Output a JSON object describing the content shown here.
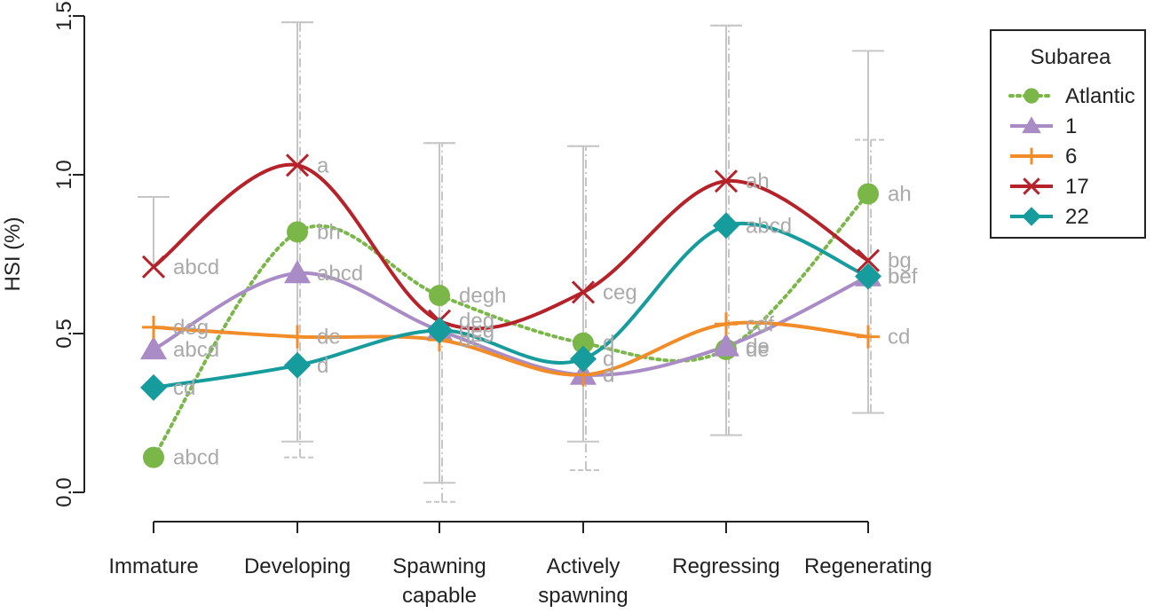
{
  "chart_data": {
    "type": "line",
    "ylabel": "HSI (%)",
    "ylim": [
      0,
      1.5
    ],
    "yticks": [
      "0.0",
      "0.5",
      "1.0",
      "1.5"
    ],
    "categories": [
      "Immature",
      "Developing",
      "Spawning capable",
      "Actively spawning",
      "Regressing",
      "Regenerating"
    ],
    "category_lines": [
      [
        "Immature"
      ],
      [
        "Developing"
      ],
      [
        "Spawning",
        "capable"
      ],
      [
        "Actively",
        "spawning"
      ],
      [
        "Regressing"
      ],
      [
        "Regenerating"
      ]
    ],
    "legend": {
      "title": "Subarea",
      "position": "top-right"
    },
    "series": [
      {
        "name": "Atlantic",
        "color": "#7ab648",
        "marker": "circle",
        "style": "dotted",
        "values": [
          0.11,
          0.82,
          0.62,
          0.47,
          0.45,
          0.94
        ],
        "err_low": [
          null,
          0.11,
          -0.03,
          0.07,
          0.18,
          0.25
        ],
        "err_high": [
          null,
          1.48,
          1.1,
          1.09,
          1.47,
          1.11
        ],
        "labels": [
          "abcd",
          "bh",
          "degh",
          "d",
          "de",
          "ah"
        ]
      },
      {
        "name": "1",
        "color": "#a98bc6",
        "marker": "triangle",
        "style": "solid",
        "values": [
          0.45,
          0.69,
          0.51,
          0.37,
          0.46,
          0.68
        ],
        "err_low": [
          null,
          null,
          null,
          null,
          null,
          null
        ],
        "err_high": [
          null,
          null,
          null,
          null,
          null,
          null
        ],
        "labels": [
          "abcd",
          "abcd",
          "deg",
          "d",
          "de",
          "be"
        ]
      },
      {
        "name": "6",
        "color": "#f28c28",
        "marker": "plus",
        "style": "solid",
        "values": [
          0.52,
          0.49,
          0.48,
          0.37,
          0.53,
          0.49
        ],
        "err_low": [
          null,
          null,
          null,
          null,
          null,
          null
        ],
        "err_high": [
          null,
          null,
          null,
          null,
          null,
          null
        ],
        "labels": [
          "deg",
          "de",
          "de",
          "d",
          "cdf",
          "cd"
        ]
      },
      {
        "name": "17",
        "color": "#b5222a",
        "marker": "x",
        "style": "solid",
        "values": [
          0.71,
          1.03,
          0.54,
          0.63,
          0.98,
          0.73
        ],
        "err_low": [
          null,
          0.16,
          0.03,
          0.16,
          0.18,
          0.25
        ],
        "err_high": [
          0.93,
          1.48,
          1.1,
          1.09,
          1.47,
          1.39
        ],
        "labels": [
          "abcd",
          "a",
          "deg",
          "ceg",
          "ah",
          "bg"
        ]
      },
      {
        "name": "22",
        "color": "#169c9c",
        "marker": "diamond",
        "style": "solid",
        "values": [
          0.33,
          0.4,
          0.51,
          0.42,
          0.84,
          0.68
        ],
        "err_low": [
          null,
          null,
          null,
          null,
          null,
          null
        ],
        "err_high": [
          null,
          null,
          null,
          null,
          null,
          null
        ],
        "labels": [
          "cd",
          "d",
          "deg",
          "d",
          "abcd",
          "bef"
        ]
      }
    ]
  }
}
